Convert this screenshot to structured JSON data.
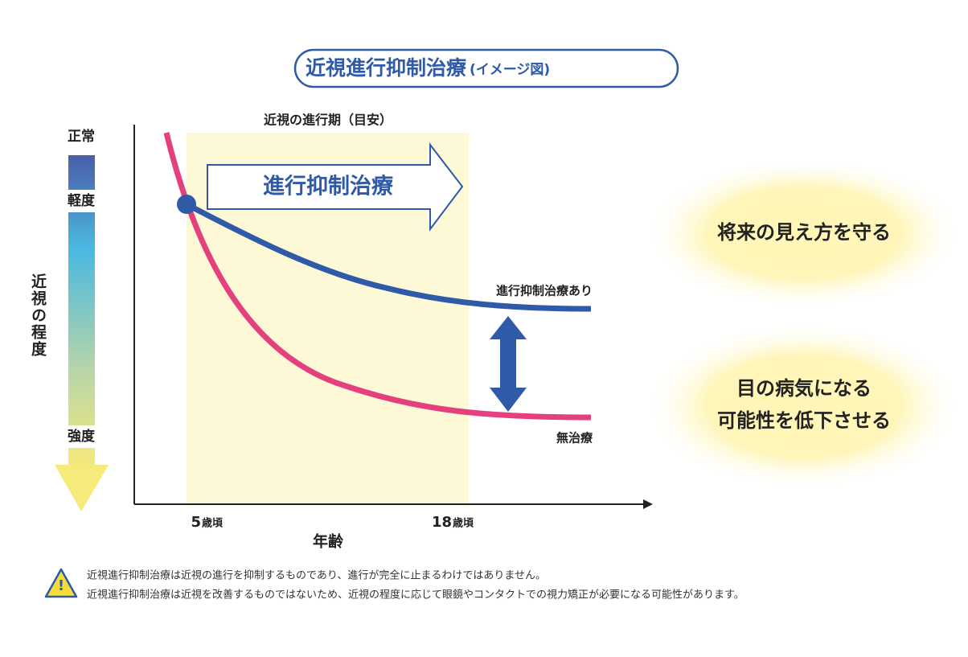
{
  "title": {
    "main": "近視進行抑制治療",
    "sub": "(イメージ図)"
  },
  "y_axis": {
    "label": "近視の程度",
    "levels": [
      "正常",
      "軽度",
      "強度"
    ]
  },
  "x_axis": {
    "label": "年齢",
    "ticks": [
      {
        "number": "5",
        "unit": "歳頃"
      },
      {
        "number": "18",
        "unit": "歳頃"
      }
    ]
  },
  "period_label": "近視の進行期（目安）",
  "treatment_arrow": "進行抑制治療",
  "curves": {
    "treated": "進行抑制治療あり",
    "untreated": "無治療"
  },
  "benefits": [
    [
      "将来の見え方を守る"
    ],
    [
      "目の病気になる",
      "可能性を低下させる"
    ]
  ],
  "notes": [
    "近視進行抑制治療は近視の進行を抑制するものであり、進行が完全に止まるわけではありません。",
    "近視進行抑制治療は近視を改善するものではないため、近視の程度に応じて眼鏡やコンタクトでの視力矯正が必要になる可能性があります。"
  ]
}
